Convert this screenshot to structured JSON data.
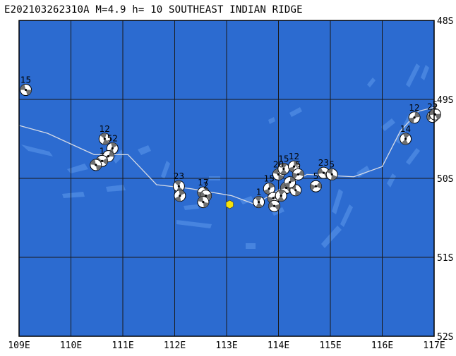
{
  "title": "E202103262310A M=4.9 h= 10 SOUTHEAST INDIAN RIDGE",
  "colors": {
    "ocean": "#2C6BD0",
    "bathymetry": "#4C89E2",
    "grid": "#1a1a1a",
    "plate_boundary": "#d6dbe6",
    "epicenter": "#f5e20a",
    "beachball_dark": "#6f6f6f"
  },
  "map": {
    "lon_range": [
      109,
      117
    ],
    "lat_range": [
      -52,
      -48
    ],
    "lon_labels": [
      "109E",
      "110E",
      "111E",
      "112E",
      "113E",
      "114E",
      "115E",
      "116E",
      "117E"
    ],
    "lat_labels": [
      "48S",
      "49S",
      "50S",
      "51S",
      "52S"
    ]
  },
  "epicenter": {
    "lon": 113.06,
    "lat": -50.33
  },
  "plate_boundary": [
    [
      109.0,
      -49.33
    ],
    [
      109.55,
      -49.43
    ],
    [
      110.45,
      -49.7
    ],
    [
      111.1,
      -49.7
    ],
    [
      111.65,
      -50.08
    ],
    [
      112.3,
      -50.13
    ],
    [
      113.1,
      -50.22
    ],
    [
      113.55,
      -50.33
    ],
    [
      114.0,
      -50.15
    ],
    [
      114.55,
      -49.95
    ],
    [
      115.45,
      -49.98
    ],
    [
      116.0,
      -49.85
    ],
    [
      116.35,
      -49.4
    ],
    [
      116.7,
      -49.15
    ],
    [
      117.0,
      -49.1
    ]
  ],
  "mechanisms": [
    {
      "lon": 109.13,
      "lat": -48.88,
      "label": "15"
    },
    {
      "lon": 110.65,
      "lat": -49.5,
      "label": "12"
    },
    {
      "lon": 110.8,
      "lat": -49.62,
      "label": "52"
    },
    {
      "lon": 110.72,
      "lat": -49.72,
      "label": ""
    },
    {
      "lon": 110.6,
      "lat": -49.78,
      "label": "1"
    },
    {
      "lon": 110.48,
      "lat": -49.83,
      "label": ""
    },
    {
      "lon": 112.08,
      "lat": -50.1,
      "label": "23"
    },
    {
      "lon": 112.1,
      "lat": -50.22,
      "label": ""
    },
    {
      "lon": 112.55,
      "lat": -50.18,
      "label": "17"
    },
    {
      "lon": 112.6,
      "lat": -50.22,
      "label": "2"
    },
    {
      "lon": 112.55,
      "lat": -50.3,
      "label": ""
    },
    {
      "lon": 113.62,
      "lat": -50.3,
      "label": "1"
    },
    {
      "lon": 113.82,
      "lat": -50.13,
      "label": "15"
    },
    {
      "lon": 113.9,
      "lat": -50.25,
      "label": ""
    },
    {
      "lon": 113.92,
      "lat": -50.35,
      "label": ""
    },
    {
      "lon": 114.0,
      "lat": -49.95,
      "label": "20"
    },
    {
      "lon": 114.1,
      "lat": -49.88,
      "label": "15"
    },
    {
      "lon": 114.3,
      "lat": -49.85,
      "label": "12"
    },
    {
      "lon": 114.38,
      "lat": -49.95,
      "label": "5"
    },
    {
      "lon": 114.15,
      "lat": -50.12,
      "label": ""
    },
    {
      "lon": 114.33,
      "lat": -50.15,
      "label": ""
    },
    {
      "lon": 114.05,
      "lat": -50.22,
      "label": ""
    },
    {
      "lon": 114.22,
      "lat": -50.05,
      "label": ""
    },
    {
      "lon": 114.72,
      "lat": -50.1,
      "label": "5"
    },
    {
      "lon": 114.87,
      "lat": -49.93,
      "label": "23"
    },
    {
      "lon": 115.03,
      "lat": -49.95,
      "label": "5"
    },
    {
      "lon": 116.45,
      "lat": -49.5,
      "label": "14"
    },
    {
      "lon": 116.62,
      "lat": -49.23,
      "label": "12"
    },
    {
      "lon": 116.97,
      "lat": -49.22,
      "label": "21"
    },
    {
      "lon": 117.02,
      "lat": -49.19,
      "label": "5"
    }
  ]
}
